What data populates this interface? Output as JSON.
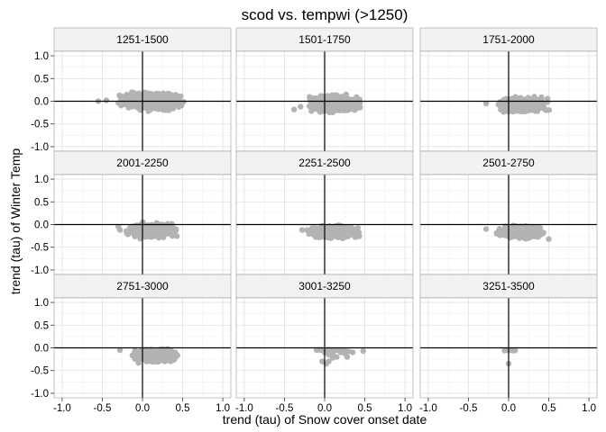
{
  "chart_data": {
    "type": "scatter",
    "title": "scod vs. tempwi (>1250)",
    "xlabel": "trend (tau) of Snow cover onset date",
    "ylabel": "trend (tau) of Winter Temp",
    "xlim": [
      -1.1,
      1.1
    ],
    "ylim": [
      -1.1,
      1.1
    ],
    "x_ticks": [
      -1.0,
      -0.5,
      0.0,
      0.5,
      1.0
    ],
    "x_tick_labels": [
      "-1.0",
      "-0.5",
      "0.0",
      "0.5",
      "1.0"
    ],
    "y_ticks": [
      -1.0,
      -0.5,
      0.0,
      0.5,
      1.0
    ],
    "y_tick_labels": [
      "-1.0",
      "-0.5",
      "0.0",
      "0.5",
      "1.0"
    ],
    "grid": true,
    "reference_lines": {
      "x": 0,
      "y": 0
    },
    "point_color": "#b3b3b3",
    "panels": [
      {
        "label": "1251-1500",
        "x_range": [
          -0.55,
          0.6
        ],
        "y_range": [
          -0.25,
          0.25
        ],
        "core_x": [
          -0.3,
          0.5
        ],
        "core_y": [
          -0.2,
          0.2
        ],
        "outliers": [
          [
            -0.55,
            0.0
          ],
          [
            -0.45,
            0.02
          ]
        ]
      },
      {
        "label": "1501-1750",
        "x_range": [
          -0.38,
          0.55
        ],
        "y_range": [
          -0.3,
          0.2
        ],
        "core_x": [
          -0.2,
          0.45
        ],
        "core_y": [
          -0.25,
          0.15
        ],
        "outliers": [
          [
            -0.38,
            -0.18
          ],
          [
            -0.3,
            -0.12
          ]
        ]
      },
      {
        "label": "1751-2000",
        "x_range": [
          -0.3,
          0.55
        ],
        "y_range": [
          -0.3,
          0.15
        ],
        "core_x": [
          -0.15,
          0.5
        ],
        "core_y": [
          -0.25,
          0.1
        ],
        "outliers": [
          [
            -0.28,
            -0.05
          ]
        ]
      },
      {
        "label": "2001-2250",
        "x_range": [
          -0.32,
          0.5
        ],
        "y_range": [
          -0.35,
          0.05
        ],
        "core_x": [
          -0.2,
          0.42
        ],
        "core_y": [
          -0.3,
          0.03
        ],
        "outliers": [
          [
            -0.3,
            -0.05
          ],
          [
            -0.28,
            -0.12
          ]
        ]
      },
      {
        "label": "2251-2500",
        "x_range": [
          -0.28,
          0.5
        ],
        "y_range": [
          -0.35,
          0.0
        ],
        "core_x": [
          -0.2,
          0.45
        ],
        "core_y": [
          -0.3,
          -0.02
        ],
        "outliers": [
          [
            -0.28,
            -0.12
          ]
        ]
      },
      {
        "label": "2501-2750",
        "x_range": [
          -0.28,
          0.5
        ],
        "y_range": [
          -0.35,
          0.0
        ],
        "core_x": [
          -0.15,
          0.45
        ],
        "core_y": [
          -0.3,
          -0.02
        ],
        "outliers": [
          [
            -0.28,
            -0.1
          ],
          [
            0.5,
            -0.32
          ]
        ]
      },
      {
        "label": "2751-3000",
        "x_range": [
          -0.28,
          0.5
        ],
        "y_range": [
          -0.35,
          0.0
        ],
        "core_x": [
          -0.1,
          0.45
        ],
        "core_y": [
          -0.32,
          -0.02
        ],
        "outliers": [
          [
            -0.28,
            -0.05
          ],
          [
            -0.05,
            -0.33
          ]
        ]
      },
      {
        "label": "3001-3250",
        "x_range": [
          -0.1,
          0.5
        ],
        "y_range": [
          -0.35,
          0.0
        ],
        "points": [
          [
            -0.1,
            -0.05
          ],
          [
            -0.05,
            -0.05
          ],
          [
            0.0,
            -0.05
          ],
          [
            0.05,
            -0.05
          ],
          [
            0.1,
            -0.05
          ],
          [
            0.15,
            -0.05
          ],
          [
            0.2,
            -0.05
          ],
          [
            0.25,
            -0.05
          ],
          [
            0.0,
            -0.1
          ],
          [
            0.05,
            -0.15
          ],
          [
            0.1,
            -0.12
          ],
          [
            0.15,
            -0.2
          ],
          [
            0.2,
            -0.1
          ],
          [
            0.25,
            -0.12
          ],
          [
            0.28,
            -0.2
          ],
          [
            0.3,
            -0.08
          ],
          [
            0.35,
            -0.1
          ],
          [
            0.05,
            -0.3
          ],
          [
            0.02,
            -0.35
          ],
          [
            -0.03,
            -0.3
          ],
          [
            0.1,
            -0.22
          ],
          [
            0.48,
            -0.07
          ]
        ]
      },
      {
        "label": "3251-3500",
        "x_range": [
          -0.05,
          0.08
        ],
        "y_range": [
          -0.35,
          -0.05
        ],
        "points": [
          [
            -0.05,
            -0.06
          ],
          [
            0.0,
            -0.06
          ],
          [
            0.05,
            -0.06
          ],
          [
            0.08,
            -0.06
          ],
          [
            0.0,
            -0.35
          ]
        ]
      }
    ]
  }
}
